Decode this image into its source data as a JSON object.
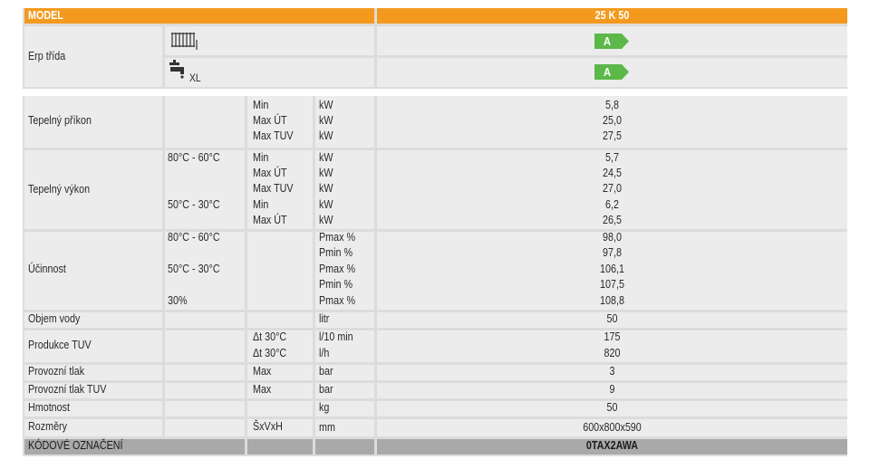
{
  "header": {
    "model_label": "MODEL",
    "model_name": "25 K 50"
  },
  "erp": {
    "label": "Erp třída",
    "heating_icon": "radiator-icon",
    "water_icon": "tap-icon",
    "water_suffix": "XL",
    "heating_class": "A",
    "water_class": "A",
    "class_color": "#5cb848"
  },
  "rows": {
    "input": {
      "label": "Tepelný příkon",
      "sub": [
        "Min",
        "Max ÚT",
        "Max TUV"
      ],
      "units": [
        "kW",
        "kW",
        "kW"
      ],
      "values": [
        "5,8",
        "25,0",
        "27,5"
      ]
    },
    "output": {
      "label": "Tepelný výkon",
      "cond": [
        "80°C - 60°C",
        "50°C - 30°C"
      ],
      "sub": [
        "Min",
        "Max ÚT",
        "Max TUV",
        "Min",
        "Max ÚT"
      ],
      "units": [
        "kW",
        "kW",
        "kW",
        "kW",
        "kW"
      ],
      "values": [
        "5,7",
        "24,5",
        "27,0",
        "6,2",
        "26,5"
      ]
    },
    "efficiency": {
      "label": "Účinnost",
      "cond": [
        "80°C - 60°C",
        "50°C - 30°C",
        "30%"
      ],
      "units": [
        "Pmax %",
        "Pmin %",
        "Pmax %",
        "Pmin %",
        "Pmax %"
      ],
      "values": [
        "98,0",
        "97,8",
        "106,1",
        "107,5",
        "108,8"
      ]
    },
    "volume": {
      "label": "Objem vody",
      "unit": "litr",
      "value": "50"
    },
    "dhw": {
      "label": "Produkce TUV",
      "sub": [
        "Δt 30°C",
        "Δt 30°C"
      ],
      "units": [
        "l/10 min",
        "l/h"
      ],
      "values": [
        "175",
        "820"
      ]
    },
    "pressure": {
      "label": "Provozní tlak",
      "sub": "Max",
      "unit": "bar",
      "value": "3"
    },
    "pressure_dhw": {
      "label": "Provozní tlak TUV",
      "sub": "Max",
      "unit": "bar",
      "value": "9"
    },
    "weight": {
      "label": "Hmotnost",
      "unit": "kg",
      "value": "50"
    },
    "dimensions": {
      "label": "Rozměry",
      "sub": "ŠxVxH",
      "unit": "mm",
      "value": "600x800x590"
    }
  },
  "footer": {
    "label": "KÓDOVÉ OZNAČENÍ",
    "code": "0TAX2AWA"
  }
}
